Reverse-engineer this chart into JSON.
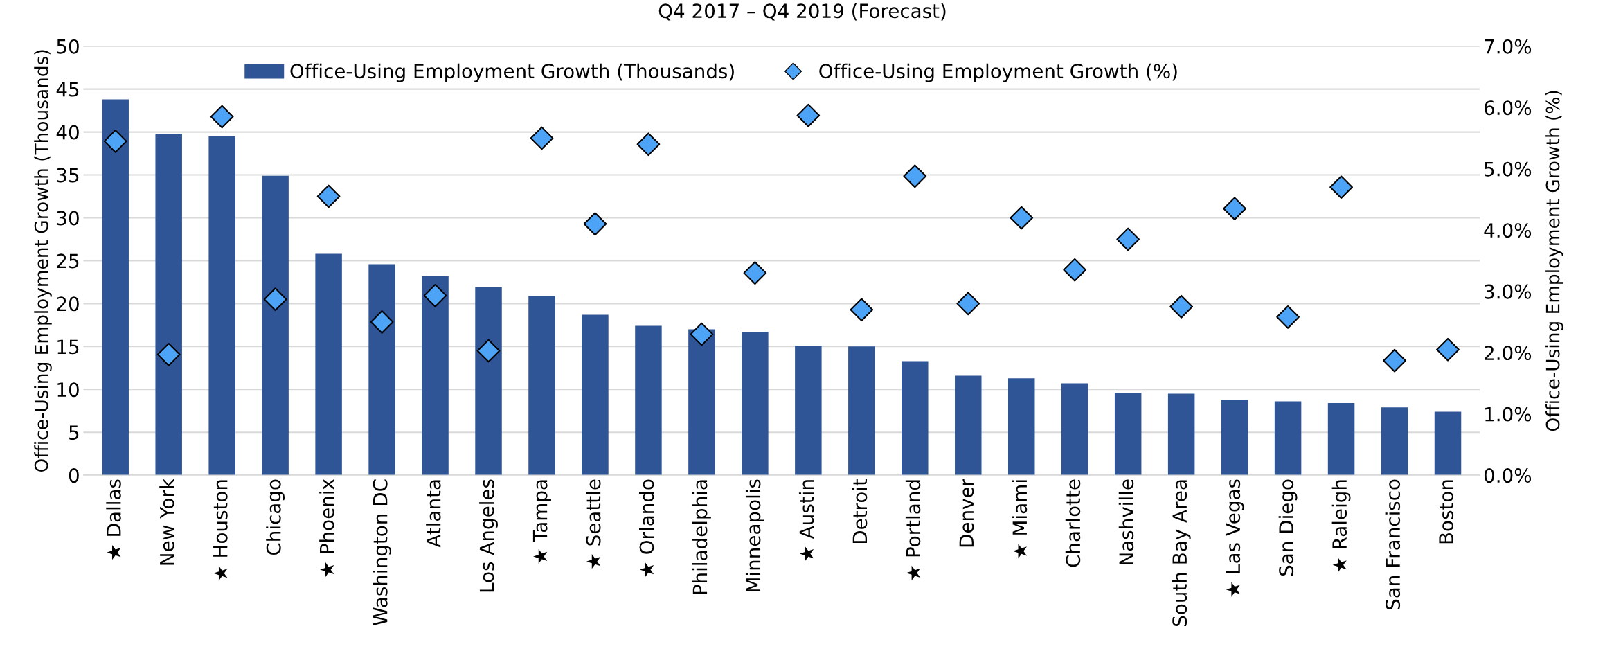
{
  "chart_data": {
    "type": "bar",
    "title": "Q4 2017 – Q4 2019 (Forecast)",
    "ylabel": "Office-Using Employment Growth (Thousands)",
    "y2label": "Office-Using Employment Growth (%)",
    "categories": [
      "★ Dallas",
      "New York",
      "★ Houston",
      "Chicago",
      "★ Phoenix",
      "Washington DC",
      "Atlanta",
      "Los Angeles",
      "★ Tampa",
      "★ Seattle",
      "★ Orlando",
      "Philadelphia",
      "Minneapolis",
      "★ Austin",
      "Detroit",
      "★ Portland",
      "Denver",
      "★ Miami",
      "Charlotte",
      "Nashville",
      "South Bay Area",
      "★ Las Vegas",
      "San Diego",
      "★ Raleigh",
      "San Francisco",
      "Boston"
    ],
    "series": [
      {
        "name": "Office-Using Employment Growth (Thousands)",
        "color": "#2f5597",
        "values": [
          43.8,
          39.8,
          39.5,
          34.9,
          25.8,
          24.6,
          23.2,
          21.9,
          20.9,
          18.7,
          17.4,
          17.0,
          16.7,
          15.1,
          15.0,
          13.3,
          11.6,
          11.3,
          10.7,
          9.6,
          9.5,
          8.8,
          8.6,
          8.4,
          7.9,
          7.4
        ]
      },
      {
        "name": "Office-Using Employment Growth (%)",
        "type": "scatter",
        "axis": "y2",
        "marker": "diamond",
        "color": "#4da3f5",
        "values": [
          5.45,
          1.97,
          5.85,
          2.87,
          4.55,
          2.5,
          2.93,
          2.03,
          5.5,
          4.1,
          5.4,
          2.3,
          3.3,
          5.87,
          2.7,
          4.88,
          2.8,
          4.2,
          3.35,
          3.85,
          2.75,
          4.35,
          2.58,
          4.7,
          1.87,
          2.05
        ]
      }
    ],
    "ylim": [
      0,
      50
    ],
    "yticks": [
      0,
      5,
      10,
      15,
      20,
      25,
      30,
      35,
      40,
      45,
      50
    ],
    "y2lim": [
      0,
      7
    ],
    "y2ticks": [
      {
        "value": 0,
        "label": "0.0%"
      },
      {
        "value": 1,
        "label": "1.0%"
      },
      {
        "value": 2,
        "label": "2.0%"
      },
      {
        "value": 3,
        "label": "3.0%"
      },
      {
        "value": 4,
        "label": "4.0%"
      },
      {
        "value": 5,
        "label": "5.0%"
      },
      {
        "value": 6,
        "label": "6.0%"
      },
      {
        "value": 7,
        "label": "7.0%"
      }
    ],
    "grid": "y",
    "legend": "top"
  }
}
